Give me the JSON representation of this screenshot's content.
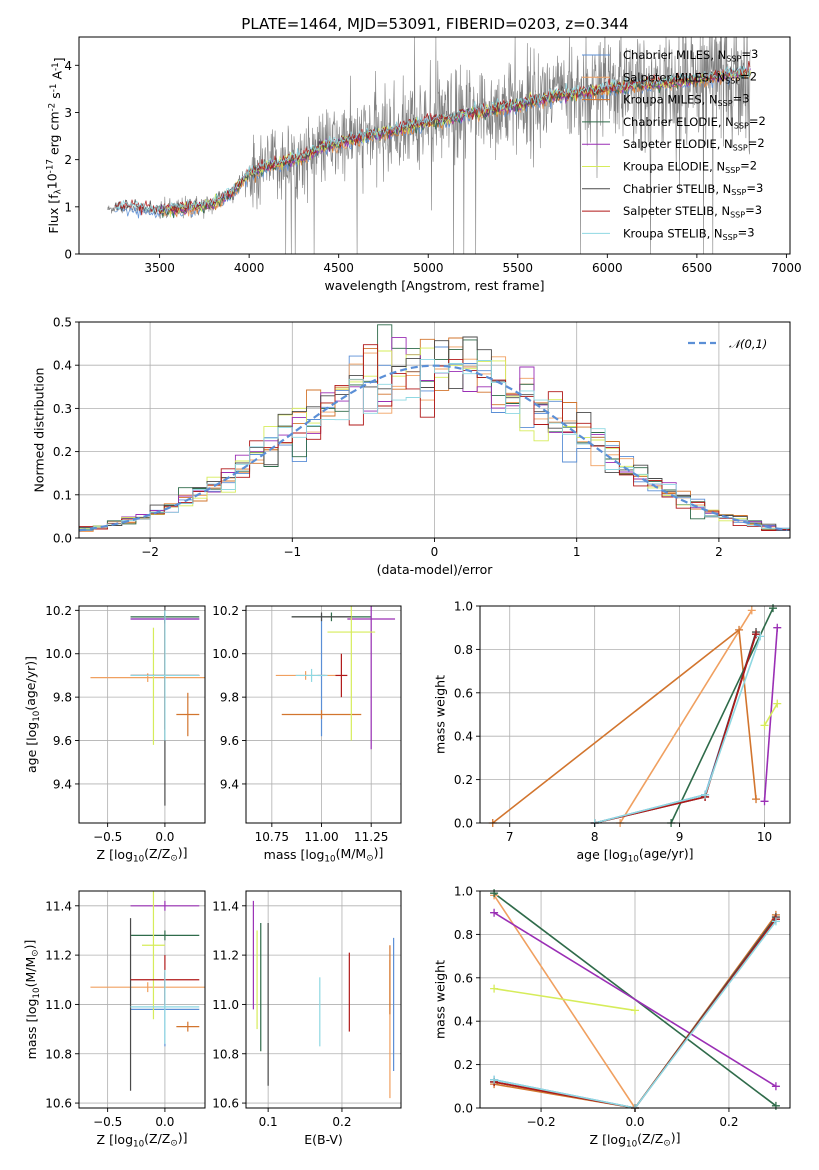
{
  "figure_title": "PLATE=1464, MJD=53091, FIBERID=0203, z=0.344",
  "series": [
    {
      "name": "Chabrier MILES, N$_{SSP}$=3",
      "color": "#5b8fd6"
    },
    {
      "name": "Salpeter MILES, N$_{SSP}$=2",
      "color": "#f0a060"
    },
    {
      "name": "Kroupa MILES, N$_{SSP}$=3",
      "color": "#d2752e"
    },
    {
      "name": "Chabrier ELODIE, N$_{SSP}$=2",
      "color": "#2f6b4a"
    },
    {
      "name": "Salpeter ELODIE, N$_{SSP}$=2",
      "color": "#9a2fb5"
    },
    {
      "name": "Kroupa ELODIE, N$_{SSP}$=2",
      "color": "#d6ec5a"
    },
    {
      "name": "Chabrier STELIB, N$_{SSP}$=3",
      "color": "#4a4a4a"
    },
    {
      "name": "Salpeter STELIB, N$_{SSP}$=3",
      "color": "#b01818"
    },
    {
      "name": "Kroupa STELIB, N$_{SSP}$=3",
      "color": "#8fd8e2"
    }
  ],
  "chart_data": [
    {
      "id": "spectrum",
      "type": "line",
      "xlabel": "wavelength [Angstrom, rest frame]",
      "ylabel": "Flux [f$_\\lambda$10$^{-17}$ erg cm$^{-2}$ s$^{-1}$ A$^{-1}$]",
      "xlim": [
        3050,
        7020
      ],
      "ylim": [
        0,
        4.6
      ],
      "xticks": [
        3500,
        4000,
        4500,
        5000,
        5500,
        6000,
        6500,
        7000
      ],
      "yticks": [
        0,
        1,
        2,
        3,
        4
      ],
      "data_color": "#808080",
      "data_x_range": [
        3210,
        6800
      ],
      "continuum": {
        "x": [
          3210,
          3300,
          3400,
          3500,
          3600,
          3700,
          3800,
          3900,
          4000,
          4100,
          4200,
          4300,
          4400,
          4500,
          4600,
          4700,
          4800,
          4900,
          5000,
          5100,
          5200,
          5300,
          5400,
          5500,
          5600,
          5700,
          5800,
          5900,
          6000,
          6100,
          6200,
          6300,
          6400,
          6500,
          6600,
          6700,
          6800
        ],
        "y": [
          0.95,
          1.0,
          0.95,
          0.9,
          0.95,
          1.0,
          1.05,
          1.3,
          1.7,
          1.85,
          1.95,
          2.05,
          2.25,
          2.35,
          2.45,
          2.55,
          2.6,
          2.7,
          2.8,
          2.85,
          2.95,
          3.0,
          3.1,
          3.15,
          3.25,
          3.35,
          3.4,
          3.45,
          3.5,
          3.55,
          3.6,
          3.6,
          3.65,
          3.7,
          3.75,
          3.8,
          3.85
        ]
      },
      "legend_loc": "upper right"
    },
    {
      "id": "residuals",
      "type": "step",
      "xlabel": "(data-model)/error",
      "ylabel": "Normed distribution",
      "xlim": [
        -2.5,
        2.5
      ],
      "ylim": [
        0,
        0.5
      ],
      "xticks": [
        -2,
        -1,
        0,
        1,
        2
      ],
      "yticks": [
        0.0,
        0.1,
        0.2,
        0.3,
        0.4,
        0.5
      ],
      "grid": true,
      "reference_curve": {
        "name": "$\\mathcal{N}(0,1)$",
        "mean": 0,
        "std": 1,
        "color": "#5b8fd6",
        "style": "dashed"
      },
      "bin_width": 0.1,
      "legend_loc": "upper right"
    },
    {
      "id": "age-vs-Z",
      "type": "errorbar",
      "xlabel": "Z [log$_{10}$(Z/Z$_\\odot$)]",
      "ylabel": "age  [log$_{10}$(age/yr)]",
      "xlim": [
        -0.75,
        0.35
      ],
      "ylim": [
        9.22,
        10.22
      ],
      "xticks": [
        -0.5,
        0.0
      ],
      "yticks": [
        9.4,
        9.6,
        9.8,
        10.0,
        10.2
      ],
      "grid": true,
      "points": [
        {
          "s": 0,
          "x": 0.0,
          "xerr": 0.3,
          "y": 10.16,
          "yerr": 0.02
        },
        {
          "s": 1,
          "x": -0.15,
          "xerr": 0.5,
          "y": 9.89,
          "yerr": 0.02
        },
        {
          "s": 2,
          "x": 0.2,
          "xerr": 0.1,
          "y": 9.72,
          "yerr": 0.1
        },
        {
          "s": 3,
          "x": 0.0,
          "xerr": 0.3,
          "y": 10.17,
          "yerr": 0.02
        },
        {
          "s": 4,
          "x": 0.0,
          "xerr": 0.3,
          "y": 10.16,
          "yerr": 0.02
        },
        {
          "s": 5,
          "x": -0.1,
          "xerr": 0.0,
          "y": 9.85,
          "yerr": 0.27
        },
        {
          "s": 6,
          "x": 0.0,
          "xerr": 0.3,
          "y": 9.9,
          "yerr": 0.6
        },
        {
          "s": 7,
          "x": 0.0,
          "xerr": 0.3,
          "y": 9.9,
          "yerr": 0.25
        },
        {
          "s": 8,
          "x": 0.0,
          "xerr": 0.3,
          "y": 9.9,
          "yerr": 0.3
        }
      ]
    },
    {
      "id": "age-vs-mass",
      "type": "errorbar",
      "xlabel": "mass [log$_{10}$(M/M$_\\odot$)]",
      "ylabel": "",
      "xlim": [
        10.62,
        11.4
      ],
      "ylim": [
        9.22,
        10.22
      ],
      "xticks": [
        10.75,
        11.0,
        11.25
      ],
      "yticks": [
        9.4,
        9.6,
        9.8,
        10.0,
        10.2
      ],
      "grid": true,
      "points": [
        {
          "s": 0,
          "x": 11.0,
          "xerr": 0.02,
          "y": 9.9,
          "yerr": 0.28
        },
        {
          "s": 1,
          "x": 10.92,
          "xerr": 0.15,
          "y": 9.9,
          "yerr": 0.02
        },
        {
          "s": 2,
          "x": 11.0,
          "xerr": 0.2,
          "y": 9.72,
          "yerr": 0.02
        },
        {
          "s": 3,
          "x": 11.05,
          "xerr": 0.2,
          "y": 10.17,
          "yerr": 0.02
        },
        {
          "s": 4,
          "x": 11.25,
          "xerr": 0.12,
          "y": 10.16,
          "yerr": 0.6
        },
        {
          "s": 5,
          "x": 11.15,
          "xerr": 0.12,
          "y": 10.1,
          "yerr": 0.5
        },
        {
          "s": 6,
          "x": 11.0,
          "xerr": 0.15,
          "y": 10.17,
          "yerr": 0.02
        },
        {
          "s": 7,
          "x": 11.1,
          "xerr": 0.03,
          "y": 9.9,
          "yerr": 0.1
        },
        {
          "s": 8,
          "x": 10.95,
          "xerr": 0.08,
          "y": 9.9,
          "yerr": 0.03
        }
      ]
    },
    {
      "id": "mw-vs-age",
      "type": "line",
      "xlabel": "age  [log$_{10}$(age/yr)]",
      "ylabel": "mass weight",
      "xlim": [
        6.65,
        10.3
      ],
      "ylim": [
        0,
        1.0
      ],
      "xticks": [
        7,
        8,
        9,
        10
      ],
      "yticks": [
        0.0,
        0.2,
        0.4,
        0.6,
        0.8,
        1.0
      ],
      "grid": true,
      "lines": [
        {
          "s": 0,
          "x": [
            8.0,
            9.3,
            9.9
          ],
          "y": [
            0.0,
            0.13,
            0.87
          ]
        },
        {
          "s": 1,
          "x": [
            8.3,
            9.85
          ],
          "y": [
            0.0,
            0.98
          ]
        },
        {
          "s": 2,
          "x": [
            6.8,
            9.7,
            9.9
          ],
          "y": [
            0.0,
            0.89,
            0.11
          ]
        },
        {
          "s": 3,
          "x": [
            8.9,
            10.1
          ],
          "y": [
            0.0,
            0.99
          ]
        },
        {
          "s": 4,
          "x": [
            10.0,
            10.15
          ],
          "y": [
            0.1,
            0.9
          ]
        },
        {
          "s": 5,
          "x": [
            10.0,
            10.15
          ],
          "y": [
            0.45,
            0.55
          ]
        },
        {
          "s": 6,
          "x": [
            8.0,
            9.3,
            9.9
          ],
          "y": [
            0.0,
            0.12,
            0.88
          ]
        },
        {
          "s": 7,
          "x": [
            8.0,
            9.3,
            9.9
          ],
          "y": [
            0.0,
            0.12,
            0.87
          ]
        },
        {
          "s": 8,
          "x": [
            8.0,
            9.3,
            9.95
          ],
          "y": [
            0.0,
            0.13,
            0.86
          ]
        }
      ]
    },
    {
      "id": "mass-vs-Z",
      "type": "errorbar",
      "xlabel": "Z [log$_{10}$(Z/Z$_\\odot$)]",
      "ylabel": "mass [log$_{10}$(M/M$_\\odot$)]",
      "xlim": [
        -0.75,
        0.35
      ],
      "ylim": [
        10.58,
        11.46
      ],
      "xticks": [
        -0.5,
        0.0
      ],
      "yticks": [
        10.6,
        10.8,
        11.0,
        11.2,
        11.4
      ],
      "grid": true,
      "points": [
        {
          "s": 0,
          "x": 0.0,
          "xerr": 0.3,
          "y": 10.98,
          "yerr": 0.15
        },
        {
          "s": 1,
          "x": -0.15,
          "xerr": 0.5,
          "y": 11.07,
          "yerr": 0.02
        },
        {
          "s": 2,
          "x": 0.2,
          "xerr": 0.1,
          "y": 10.91,
          "yerr": 0.02
        },
        {
          "s": 3,
          "x": 0.0,
          "xerr": 0.3,
          "y": 11.28,
          "yerr": 0.02
        },
        {
          "s": 4,
          "x": 0.0,
          "xerr": 0.3,
          "y": 11.4,
          "yerr": 0.02
        },
        {
          "s": 5,
          "x": -0.1,
          "xerr": 0.1,
          "y": 11.24,
          "yerr": 0.3
        },
        {
          "s": 6,
          "x": -0.3,
          "xerr": 0.0,
          "y": 11.0,
          "yerr": 0.35
        },
        {
          "s": 7,
          "x": 0.0,
          "xerr": 0.3,
          "y": 11.1,
          "yerr": 0.1
        },
        {
          "s": 8,
          "x": 0.0,
          "xerr": 0.3,
          "y": 10.99,
          "yerr": 0.15
        }
      ]
    },
    {
      "id": "mass-vs-EBV",
      "type": "errorbar",
      "xlabel": "E(B-V)",
      "ylabel": "",
      "xlim": [
        0.07,
        0.28
      ],
      "ylim": [
        10.58,
        11.46
      ],
      "xticks": [
        0.1,
        0.2
      ],
      "yticks": [
        10.6,
        10.8,
        11.0,
        11.2,
        11.4
      ],
      "grid": true,
      "points": [
        {
          "s": 0,
          "x": 0.27,
          "xerr": 0.0,
          "y": 11.0,
          "yerr": 0.27
        },
        {
          "s": 1,
          "x": 0.265,
          "xerr": 0.0,
          "y": 10.9,
          "yerr": 0.28
        },
        {
          "s": 2,
          "x": 0.265,
          "xerr": 0.0,
          "y": 11.1,
          "yerr": 0.14
        },
        {
          "s": 3,
          "x": 0.09,
          "xerr": 0.0,
          "y": 11.07,
          "yerr": 0.26
        },
        {
          "s": 4,
          "x": 0.08,
          "xerr": 0.0,
          "y": 11.2,
          "yerr": 0.22
        },
        {
          "s": 5,
          "x": 0.085,
          "xerr": 0.0,
          "y": 11.1,
          "yerr": 0.2
        },
        {
          "s": 6,
          "x": 0.1,
          "xerr": 0.0,
          "y": 11.0,
          "yerr": 0.33
        },
        {
          "s": 7,
          "x": 0.21,
          "xerr": 0.0,
          "y": 11.05,
          "yerr": 0.16
        },
        {
          "s": 8,
          "x": 0.17,
          "xerr": 0.0,
          "y": 10.97,
          "yerr": 0.14
        }
      ]
    },
    {
      "id": "mw-vs-Z",
      "type": "line",
      "xlabel": "Z [log$_{10}$(Z/Z$_\\odot$)]",
      "ylabel": "mass weight",
      "xlim": [
        -0.33,
        0.33
      ],
      "ylim": [
        0,
        1.0
      ],
      "xticks": [
        -0.2,
        0.0,
        0.2
      ],
      "yticks": [
        0.0,
        0.2,
        0.4,
        0.6,
        0.8,
        1.0
      ],
      "grid": true,
      "lines": [
        {
          "s": 0,
          "x": [
            -0.3,
            0.0,
            0.3
          ],
          "y": [
            0.13,
            0.0,
            0.87
          ]
        },
        {
          "s": 1,
          "x": [
            -0.3,
            0.0
          ],
          "y": [
            0.98,
            0.0
          ]
        },
        {
          "s": 2,
          "x": [
            -0.3,
            0.0,
            0.3
          ],
          "y": [
            0.11,
            0.0,
            0.89
          ]
        },
        {
          "s": 3,
          "x": [
            -0.3,
            0.3
          ],
          "y": [
            0.99,
            0.01
          ]
        },
        {
          "s": 4,
          "x": [
            -0.3,
            0.3
          ],
          "y": [
            0.9,
            0.1
          ]
        },
        {
          "s": 5,
          "x": [
            -0.3,
            0.0
          ],
          "y": [
            0.55,
            0.45
          ]
        },
        {
          "s": 6,
          "x": [
            -0.3,
            0.0,
            0.3
          ],
          "y": [
            0.12,
            0.0,
            0.88
          ]
        },
        {
          "s": 7,
          "x": [
            -0.3,
            0.0,
            0.3
          ],
          "y": [
            0.12,
            0.0,
            0.87
          ]
        },
        {
          "s": 8,
          "x": [
            -0.3,
            0.0,
            0.3
          ],
          "y": [
            0.13,
            0.0,
            0.86
          ]
        }
      ]
    }
  ]
}
